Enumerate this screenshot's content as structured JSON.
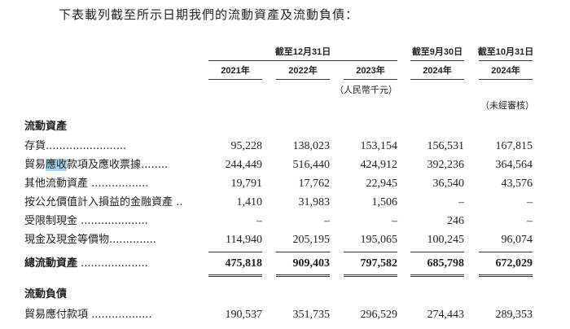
{
  "intro": "下表載列截至所示日期我們的流動資產及流動負債：",
  "header": {
    "group1": "截至12月31日",
    "group2": "截至9月30日",
    "group3": "截至10月31日",
    "years": [
      "2021年",
      "2022年",
      "2023年",
      "2024年",
      "2024年"
    ],
    "unit": "（人民幣千元）",
    "unaudited": "（未經審核）"
  },
  "sections": {
    "current_assets": "流動資產",
    "current_liabilities": "流動負債"
  },
  "rows": [
    {
      "label": "存貨",
      "dots": "........................",
      "values": [
        "95,228",
        "138,023",
        "153,154",
        "156,531",
        "167,815"
      ]
    },
    {
      "label_pre": "貿易",
      "label_hl": "應收",
      "label_post": "款項及應收票據",
      "dots": "........",
      "values": [
        "244,449",
        "516,440",
        "424,912",
        "392,236",
        "364,564"
      ]
    },
    {
      "label": "其他流動資產",
      "dots": " .................",
      "values": [
        "19,791",
        "17,762",
        "22,945",
        "36,540",
        "43,576"
      ]
    },
    {
      "label": "按公允價值計入損益的金融資產",
      "dots": " ..",
      "values": [
        "1,410",
        "31,983",
        "1,506",
        "–",
        "–"
      ]
    },
    {
      "label": "受限制現金",
      "dots": " ....................",
      "values": [
        "–",
        "–",
        "–",
        "246",
        "–"
      ]
    },
    {
      "label": "現金及現金等價物",
      "dots": "..............",
      "values": [
        "114,940",
        "205,195",
        "195,065",
        "100,245",
        "96,074"
      ]
    }
  ],
  "total": {
    "label": "總流動資產",
    "dots": " ....................",
    "values": [
      "475,818",
      "909,403",
      "797,582",
      "685,798",
      "672,029"
    ]
  },
  "liabilities": [
    {
      "label": "貿易應付款項",
      "dots": " ..................",
      "values": [
        "190,537",
        "351,735",
        "296,529",
        "274,443",
        "289,353"
      ]
    }
  ],
  "highlight_color": "#a9d2ee"
}
